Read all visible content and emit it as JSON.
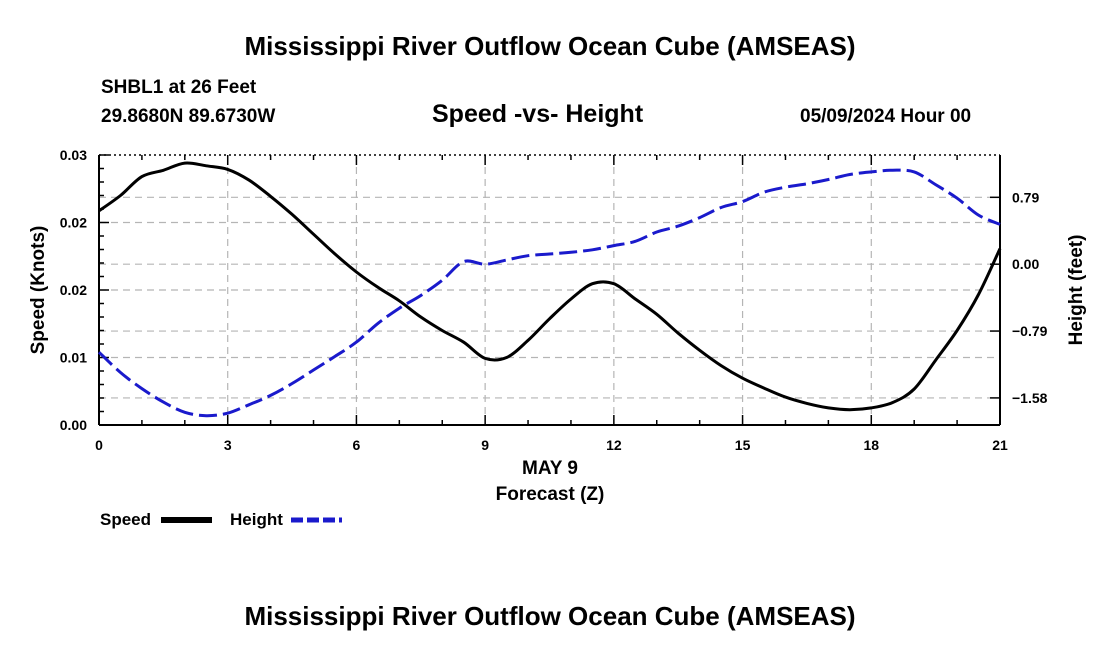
{
  "header": {
    "title": "Mississippi River Outflow Ocean Cube (AMSEAS)",
    "station": "SHBL1 at 26 Feet",
    "coords": "29.8680N  89.6730W",
    "subtitle": "Speed -vs- Height",
    "datetime": "05/09/2024 Hour 00",
    "footer_title": "Mississippi River Outflow Ocean Cube (AMSEAS)"
  },
  "legend": {
    "speed_label": "Speed",
    "height_label": "Height"
  },
  "colors": {
    "speed": "#000000",
    "height": "#1a1acc",
    "grid": "#b5b5b5"
  },
  "chart_data": {
    "type": "line",
    "title": "Speed -vs- Height",
    "xlabel": "Forecast (Z)",
    "xsublabel": "MAY 9",
    "ylabel": "Speed (Knots)",
    "y2label": "Height (feet)",
    "xlim": [
      0,
      21
    ],
    "ylim": [
      0,
      0.03
    ],
    "y2lim": [
      -1.9,
      1.29
    ],
    "x_ticks": [
      0,
      3,
      6,
      9,
      12,
      15,
      18,
      21
    ],
    "x_tick_labels": [
      "0",
      "3",
      "6",
      "9",
      "12",
      "15",
      "18",
      "21"
    ],
    "y_ticks": [
      0,
      0.0075,
      0.015,
      0.0225,
      0.03
    ],
    "y_tick_labels": [
      "0.00",
      "0.01",
      "0.02",
      "0.02",
      "0.03"
    ],
    "y2_ticks": [
      -1.58,
      -0.79,
      0.0,
      0.79
    ],
    "y2_tick_labels": [
      "−1.58",
      "−0.79",
      "0.00",
      "0.79"
    ],
    "grid": true,
    "series": [
      {
        "name": "Speed",
        "axis": "left",
        "style": "solid",
        "x": [
          0,
          0.5,
          1,
          1.5,
          2,
          2.5,
          3,
          3.5,
          4,
          4.5,
          5,
          5.5,
          6,
          6.5,
          7,
          7.5,
          8,
          8.5,
          9,
          9.5,
          10,
          10.5,
          11,
          11.5,
          12,
          12.5,
          13,
          13.5,
          14,
          14.5,
          15,
          15.5,
          16,
          16.5,
          17,
          17.5,
          18,
          18.5,
          19,
          19.5,
          20,
          20.5,
          21
        ],
        "values": [
          0.0238,
          0.0255,
          0.0276,
          0.0283,
          0.0291,
          0.0288,
          0.0284,
          0.0272,
          0.0254,
          0.0234,
          0.0212,
          0.019,
          0.017,
          0.0153,
          0.0138,
          0.012,
          0.0105,
          0.0092,
          0.0074,
          0.0075,
          0.0094,
          0.0118,
          0.014,
          0.0157,
          0.0157,
          0.014,
          0.0123,
          0.0102,
          0.0083,
          0.0066,
          0.0052,
          0.0041,
          0.0031,
          0.0024,
          0.0019,
          0.0017,
          0.0019,
          0.0025,
          0.004,
          0.0072,
          0.0105,
          0.0145,
          0.0196
        ]
      },
      {
        "name": "Height",
        "axis": "right",
        "style": "dashed",
        "x": [
          0,
          0.5,
          1,
          1.5,
          2,
          2.5,
          3,
          3.5,
          4,
          4.5,
          5,
          5.5,
          6,
          6.5,
          7,
          7.5,
          8,
          8.5,
          9,
          9.5,
          10,
          10.5,
          11,
          11.5,
          12,
          12.5,
          13,
          13.5,
          14,
          14.5,
          15,
          15.5,
          16,
          16.5,
          17,
          17.5,
          18,
          18.5,
          19,
          19.5,
          20,
          20.5,
          21
        ],
        "values": [
          -1.04,
          -1.28,
          -1.47,
          -1.63,
          -1.75,
          -1.79,
          -1.76,
          -1.66,
          -1.55,
          -1.41,
          -1.25,
          -1.09,
          -0.92,
          -0.7,
          -0.52,
          -0.37,
          -0.19,
          0.03,
          0.0,
          0.05,
          0.1,
          0.12,
          0.14,
          0.17,
          0.22,
          0.27,
          0.38,
          0.45,
          0.55,
          0.67,
          0.74,
          0.85,
          0.91,
          0.95,
          1.0,
          1.06,
          1.09,
          1.11,
          1.09,
          0.94,
          0.78,
          0.58,
          0.47
        ]
      }
    ]
  }
}
